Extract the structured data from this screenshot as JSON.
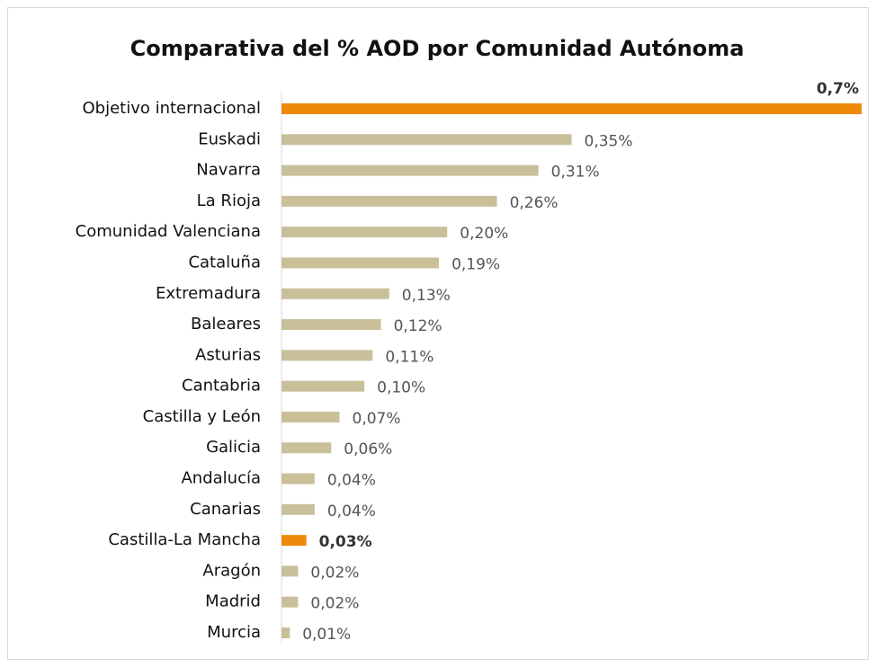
{
  "chart_data": {
    "type": "bar",
    "orientation": "horizontal",
    "title": "Comparativa del % AOD por Comunidad Autónoma",
    "categories": [
      "Objetivo internacional",
      "Euskadi",
      "Navarra",
      "La Rioja",
      "Comunidad Valenciana",
      "Cataluña",
      "Extremadura",
      "Baleares",
      "Asturias",
      "Cantabria",
      "Castilla y León",
      "Galicia",
      "Andalucía",
      "Canarias",
      "Castilla-La Mancha",
      "Aragón",
      "Madrid",
      "Murcia"
    ],
    "values": [
      0.7,
      0.35,
      0.31,
      0.26,
      0.2,
      0.19,
      0.13,
      0.12,
      0.11,
      0.1,
      0.07,
      0.06,
      0.04,
      0.04,
      0.03,
      0.02,
      0.02,
      0.01
    ],
    "value_labels": [
      "0,7%",
      "0,35%",
      "0,31%",
      "0,26%",
      "0,20%",
      "0,19%",
      "0,13%",
      "0,12%",
      "0,11%",
      "0,10%",
      "0,07%",
      "0,06%",
      "0,04%",
      "0,04%",
      "0,03%",
      "0,02%",
      "0,02%",
      "0,01%"
    ],
    "colors": [
      "#ee8a0a",
      "#c9c09a",
      "#c9c09a",
      "#c9c09a",
      "#c9c09a",
      "#c9c09a",
      "#c9c09a",
      "#c9c09a",
      "#c9c09a",
      "#c9c09a",
      "#c9c09a",
      "#c9c09a",
      "#c9c09a",
      "#c9c09a",
      "#ee8a0a",
      "#c9c09a",
      "#c9c09a",
      "#c9c09a"
    ],
    "highlight_color": "#ee8a0a",
    "xlim": [
      0,
      0.7
    ]
  }
}
